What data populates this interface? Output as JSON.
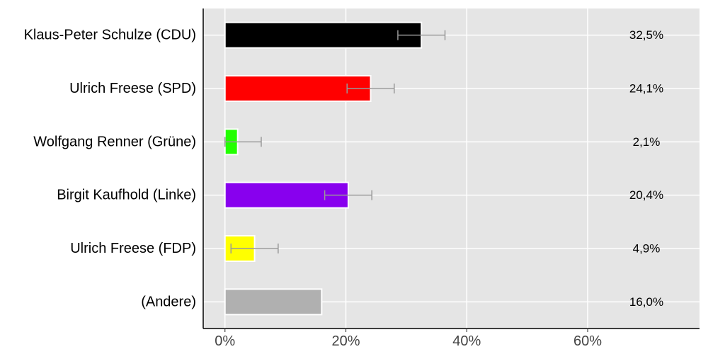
{
  "chart_data": {
    "type": "bar",
    "orientation": "horizontal",
    "categories": [
      "Klaus-Peter Schulze (CDU)",
      "Ulrich Freese (SPD)",
      "Wolfgang Renner (Grüne)",
      "Birgit Kaufhold (Linke)",
      "Ulrich Freese (FDP)",
      "(Andere)"
    ],
    "values": [
      32.5,
      24.1,
      2.1,
      20.4,
      4.9,
      16.0
    ],
    "value_labels": [
      "32,5%",
      "24,1%",
      "2,1%",
      "20,4%",
      "4,9%",
      "16,0%"
    ],
    "colors": [
      "#000000",
      "#ff0000",
      "#22ff00",
      "#8800ee",
      "#ffff00",
      "#b0b0b0"
    ],
    "error_bars": [
      [
        28.6,
        36.4
      ],
      [
        20.2,
        28.0
      ],
      [
        0.0,
        6.0
      ],
      [
        16.5,
        24.3
      ],
      [
        1.0,
        8.8
      ],
      null
    ],
    "error_bar_color": "#999999",
    "xlim": [
      -3.6,
      78.5
    ],
    "xticks": [
      0,
      20,
      40,
      60
    ],
    "xtick_labels": [
      "0%",
      "20%",
      "40%",
      "60%"
    ],
    "grid": true,
    "background": "#e5e5e5",
    "title": "",
    "xlabel": "",
    "ylabel": ""
  }
}
